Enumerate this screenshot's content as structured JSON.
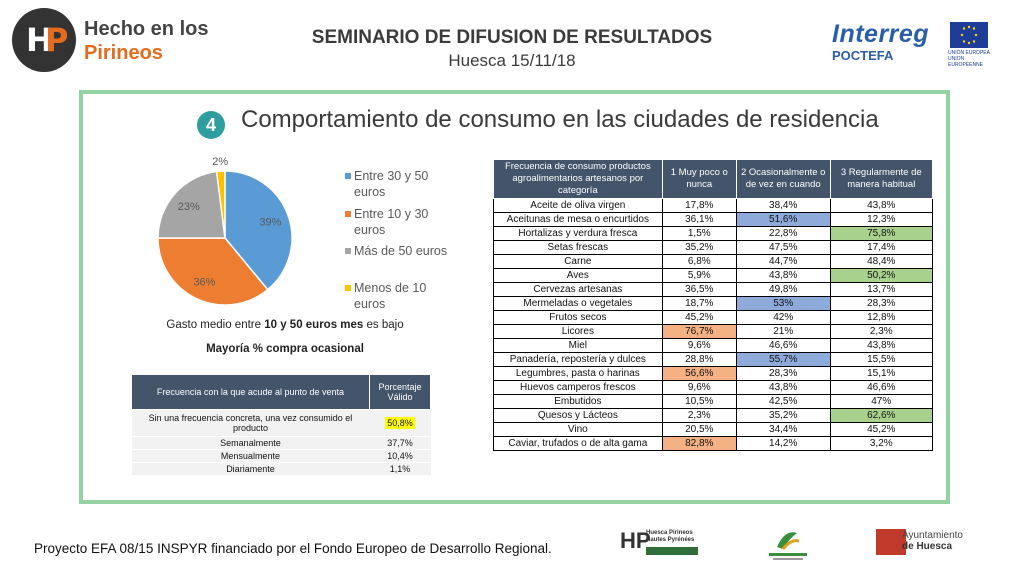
{
  "header": {
    "brand_line1": "Hecho en los",
    "brand_line2": "Pirineos",
    "title": "SEMINARIO DE DIFUSION DE RESULTADOS",
    "subtitle": "Huesca 15/11/18",
    "interreg": "Interreg",
    "poctefa": "POCTEFA",
    "eu_text": "UNIÓN EUROPEA UNION EUROPÉENNE"
  },
  "section": {
    "number": "4",
    "title": "Comportamiento de consumo en las ciudades de residencia"
  },
  "summary": {
    "gasto_pre": "Gasto medio entre ",
    "gasto_bold": "10 y 50 euros mes",
    "gasto_post": " es bajo",
    "mayoria": "Mayoría % compra ocasional"
  },
  "chart_data": [
    {
      "type": "pie",
      "title": "",
      "slices": [
        {
          "name": "Entre 30 y 50 euros",
          "value": 39,
          "label": "39%",
          "color": "#5b9bd5"
        },
        {
          "name": "Entre 10 y 30 euros",
          "value": 36,
          "label": "36%",
          "color": "#ed7d31"
        },
        {
          "name": "Más de 50 euros",
          "value": 23,
          "label": "23%",
          "color": "#a5a5a5"
        },
        {
          "name": "Menos de 10 euros",
          "value": 2,
          "label": "2%",
          "color": "#ffc000"
        }
      ],
      "legend_placement": "right"
    },
    {
      "type": "table",
      "headers": [
        "Frecuencia con la que acude al punto de venta",
        "Porcentaje Válido"
      ],
      "rows": [
        [
          "Sin una frecuencia concreta, una vez consumido el producto",
          "50,8%"
        ],
        [
          "Semanalmente",
          "37,7%"
        ],
        [
          "Mensualmente",
          "10,4%"
        ],
        [
          "Diariamente",
          "1,1%"
        ]
      ],
      "highlight_color": "#ffff00"
    },
    {
      "type": "table",
      "headers": [
        "Frecuencia de consumo productos agroalimentarios artesanos por categoría",
        "1 Muy poco o nunca",
        "2 Ocasionalmente o de vez en cuando",
        "3 Regularmente de manera habitual"
      ],
      "rows": [
        [
          "Aceite de oliva virgen",
          "17,8%",
          "38,4%",
          "43,8%"
        ],
        [
          "Aceitunas de mesa o encurtidos",
          "36,1%",
          "51,6%",
          "12,3%"
        ],
        [
          "Hortalizas y verdura fresca",
          "1,5%",
          "22,8%",
          "75,8%"
        ],
        [
          "Setas frescas",
          "35,2%",
          "47,5%",
          "17,4%"
        ],
        [
          "Carne",
          "6,8%",
          "44,7%",
          "48,4%"
        ],
        [
          "Aves",
          "5,9%",
          "43,8%",
          "50,2%"
        ],
        [
          "Cervezas artesanas",
          "36,5%",
          "49,8%",
          "13,7%"
        ],
        [
          "Mermeladas o vegetales",
          "18,7%",
          "53%",
          "28,3%"
        ],
        [
          "Frutos secos",
          "45,2%",
          "42%",
          "12,8%"
        ],
        [
          "Licores",
          "76,7%",
          "21%",
          "2,3%"
        ],
        [
          "Miel",
          "9,6%",
          "46,6%",
          "43,8%"
        ],
        [
          "Panadería, repostería y dulces",
          "28,8%",
          "55,7%",
          "15,5%"
        ],
        [
          "Legumbres, pasta o harinas",
          "56,6%",
          "28,3%",
          "15,1%"
        ],
        [
          "Huevos camperos frescos",
          "9,6%",
          "43,8%",
          "46,6%"
        ],
        [
          "Embutidos",
          "10,5%",
          "42,5%",
          "47%"
        ],
        [
          "Quesos y Lácteos",
          "2,3%",
          "35,2%",
          "62,6%"
        ],
        [
          "Vino",
          "20,5%",
          "34,4%",
          "45,2%"
        ],
        [
          "Caviar, trufados o de alta gama",
          "82,8%",
          "14,2%",
          "3,2%"
        ]
      ],
      "highlights": [
        {
          "row": 1,
          "col": 2,
          "color": "#8eaadb"
        },
        {
          "row": 2,
          "col": 3,
          "color": "#a9d18e"
        },
        {
          "row": 5,
          "col": 3,
          "color": "#a9d18e"
        },
        {
          "row": 7,
          "col": 2,
          "color": "#8eaadb"
        },
        {
          "row": 9,
          "col": 1,
          "color": "#f4b183"
        },
        {
          "row": 11,
          "col": 2,
          "color": "#8eaadb"
        },
        {
          "row": 12,
          "col": 1,
          "color": "#f4b183"
        },
        {
          "row": 15,
          "col": 3,
          "color": "#a9d18e"
        },
        {
          "row": 17,
          "col": 1,
          "color": "#f4b183"
        }
      ]
    }
  ],
  "footer": {
    "text": "Proyecto EFA 08/15 INSPYR financiado por el Fondo Europeo de Desarrollo Regional.",
    "logo1_text": "Huesca Pirineos Hautes Pyrénées",
    "ayto_line1": "Ayuntamiento",
    "ayto_line2": "de Huesca"
  }
}
